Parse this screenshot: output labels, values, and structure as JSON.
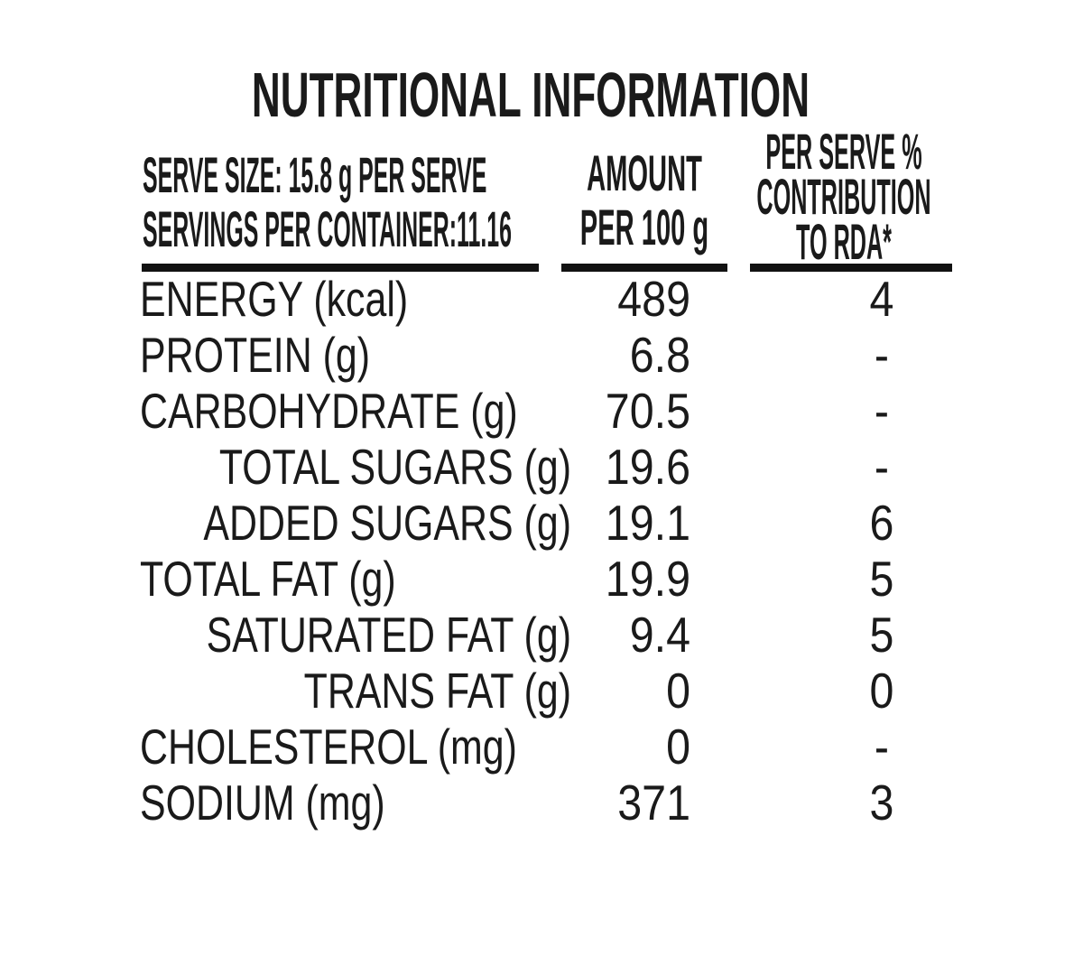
{
  "label": {
    "title": "NUTRITIONAL INFORMATION",
    "header": {
      "serving": [
        "SERVE SIZE: 15.8 g PER SERVE",
        "SERVINGS PER CONTAINER:11.16"
      ],
      "amount": [
        "AMOUNT",
        "PER 100 g"
      ],
      "rda": [
        "PER SERVE %",
        "CONTRIBUTION",
        "TO RDA*"
      ]
    },
    "rows": [
      {
        "label": "ENERGY (kcal)",
        "amount": "489",
        "rda": "4",
        "indent": false
      },
      {
        "label": "PROTEIN (g)",
        "amount": "6.8",
        "rda": "-",
        "indent": false
      },
      {
        "label": "CARBOHYDRATE (g)",
        "amount": "70.5",
        "rda": "-",
        "indent": false
      },
      {
        "label": "TOTAL SUGARS (g)",
        "amount": "19.6",
        "rda": "-",
        "indent": true
      },
      {
        "label": "ADDED SUGARS (g)",
        "amount": "19.1",
        "rda": "6",
        "indent": true
      },
      {
        "label": "TOTAL FAT (g)",
        "amount": "19.9",
        "rda": "5",
        "indent": false
      },
      {
        "label": "SATURATED FAT (g)",
        "amount": "9.4",
        "rda": "5",
        "indent": true
      },
      {
        "label": "TRANS FAT (g)",
        "amount": "0",
        "rda": "0",
        "indent": true
      },
      {
        "label": "CHOLESTEROL (mg)",
        "amount": "0",
        "rda": "-",
        "indent": false
      },
      {
        "label": "SODIUM (mg)",
        "amount": "371",
        "rda": "3",
        "indent": false
      }
    ]
  },
  "colors": {
    "text": "#1a1a1a",
    "rule": "#121212",
    "background": "#ffffff"
  }
}
